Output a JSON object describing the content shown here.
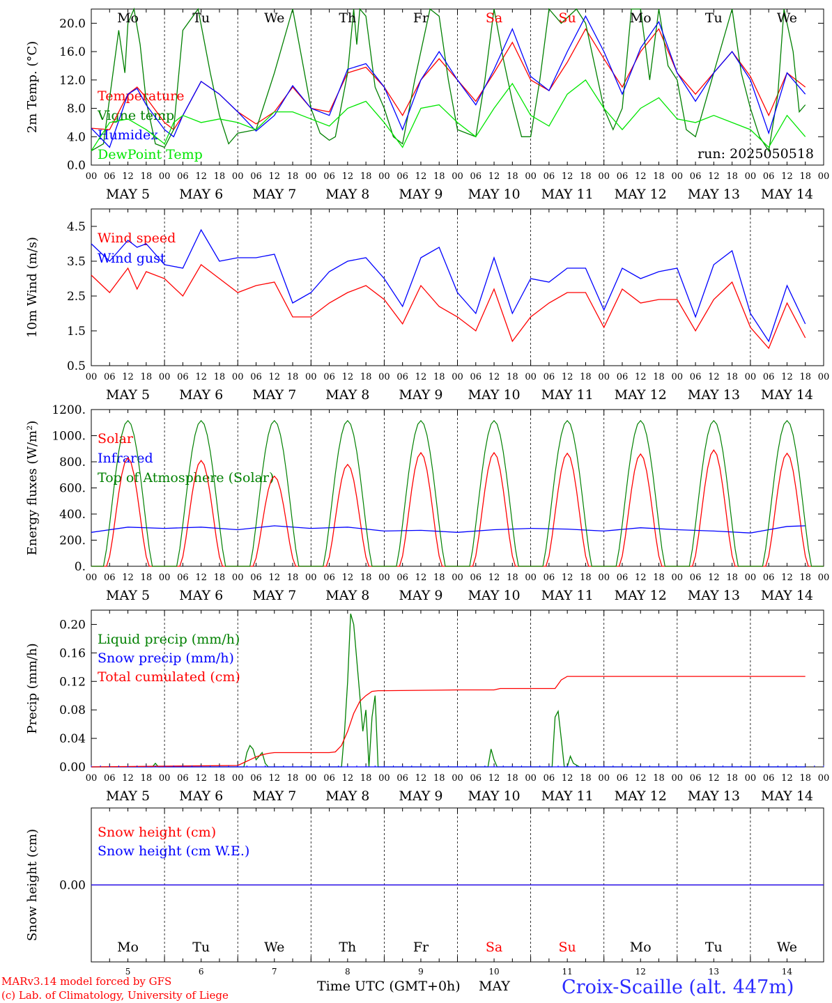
{
  "days": [
    {
      "abbr": "Mo",
      "num": "5",
      "label": "MAY  5",
      "color": "#000000"
    },
    {
      "abbr": "Tu",
      "num": "6",
      "label": "MAY  6",
      "color": "#000000"
    },
    {
      "abbr": "We",
      "num": "7",
      "label": "MAY  7",
      "color": "#000000"
    },
    {
      "abbr": "Th",
      "num": "8",
      "label": "MAY  8",
      "color": "#000000"
    },
    {
      "abbr": "Fr",
      "num": "9",
      "label": "MAY  9",
      "color": "#000000"
    },
    {
      "abbr": "Sa",
      "num": "10",
      "label": "MAY 10",
      "color": "#ff0000"
    },
    {
      "abbr": "Su",
      "num": "11",
      "label": "MAY 11",
      "color": "#ff0000"
    },
    {
      "abbr": "Mo",
      "num": "12",
      "label": "MAY 12",
      "color": "#000000"
    },
    {
      "abbr": "Tu",
      "num": "13",
      "label": "MAY 13",
      "color": "#000000"
    },
    {
      "abbr": "We",
      "num": "14",
      "label": "MAY 14",
      "color": "#000000"
    }
  ],
  "hour_ticks": [
    "00",
    "06",
    "12",
    "18"
  ],
  "colors": {
    "red": "#ff0000",
    "blue": "#0000ff",
    "green": "#008000",
    "lightgreen": "#00e600",
    "darkgreen": "#006400"
  },
  "chart_data": [
    {
      "type": "line",
      "ylabel": "2m Temp. (°C)",
      "ylim": [
        0,
        22
      ],
      "yticks": [
        "0.0",
        "4.0",
        "8.0",
        "12.0",
        "16.0",
        "20.0"
      ],
      "annotation": "run: 2025050518",
      "x_unit": "hours since May 5 00 UTC",
      "series": [
        {
          "name": "Temperature",
          "color": "#ff0000",
          "x": [
            0,
            6,
            12,
            15,
            18,
            24,
            27,
            30,
            36,
            42,
            48,
            54,
            60,
            66,
            72,
            78,
            84,
            90,
            96,
            102,
            108,
            114,
            120,
            126,
            132,
            138,
            144,
            150,
            156,
            162,
            168,
            174,
            180,
            186,
            192,
            198,
            204,
            210,
            216,
            222,
            228,
            234
          ],
          "y": [
            5.2,
            5.0,
            10.0,
            11.0,
            9.5,
            6.0,
            5.0,
            7.0,
            11.8,
            10.0,
            7.5,
            5.8,
            7.5,
            11.0,
            8.0,
            7.5,
            13.0,
            13.8,
            11.0,
            7.0,
            12.0,
            15.0,
            12.0,
            9.0,
            13.0,
            17.3,
            12.0,
            10.5,
            14.5,
            19.2,
            15.0,
            11.0,
            16.0,
            19.2,
            13.0,
            10.0,
            13.0,
            16.0,
            12.5,
            7.0,
            13.0,
            11.0
          ]
        },
        {
          "name": "Vigne temp",
          "color": "#008000",
          "x": [
            0,
            4,
            9,
            11,
            12,
            14,
            16,
            18,
            21,
            24,
            27,
            30,
            35,
            39,
            42,
            45,
            48,
            54,
            60,
            66,
            69,
            72,
            75,
            78,
            80,
            84,
            86,
            87,
            88,
            90,
            93,
            96,
            99,
            102,
            106,
            111,
            114,
            117,
            120,
            126,
            129,
            132,
            135,
            138,
            141,
            144,
            147,
            150,
            154,
            159,
            162,
            165,
            168,
            171,
            174,
            177,
            180,
            183,
            186,
            189,
            192,
            195,
            198,
            204,
            210,
            213,
            216,
            219,
            222,
            225,
            227,
            230,
            232,
            234
          ],
          "y": [
            2.0,
            3.0,
            19.0,
            13.0,
            20.0,
            22.0,
            17.0,
            9.0,
            3.0,
            2.5,
            5.0,
            19.0,
            22.0,
            13.0,
            7.0,
            3.0,
            4.5,
            5.0,
            13.0,
            22.0,
            15.0,
            8.0,
            4.5,
            3.5,
            4.0,
            13.0,
            22.0,
            17.0,
            22.0,
            21.0,
            11.0,
            8.0,
            4.0,
            3.0,
            12.0,
            22.0,
            21.0,
            12.0,
            5.0,
            4.0,
            12.0,
            22.0,
            15.0,
            9.0,
            4.0,
            4.0,
            12.0,
            22.0,
            20.0,
            22.0,
            20.0,
            14.0,
            8.0,
            5.0,
            8.0,
            22.0,
            22.0,
            12.0,
            22.0,
            14.0,
            12.0,
            5.0,
            4.0,
            13.0,
            22.0,
            13.0,
            8.0,
            4.0,
            2.0,
            10.0,
            22.0,
            16.0,
            7.5,
            8.5
          ]
        },
        {
          "name": "Humidex",
          "color": "#0000ff",
          "x": [
            0,
            6,
            12,
            15,
            18,
            24,
            27,
            30,
            36,
            42,
            48,
            54,
            60,
            66,
            72,
            78,
            84,
            90,
            96,
            102,
            108,
            114,
            120,
            126,
            132,
            138,
            144,
            150,
            156,
            162,
            168,
            174,
            180,
            186,
            192,
            198,
            204,
            210,
            216,
            222,
            228,
            234
          ],
          "y": [
            5.2,
            2.5,
            10.0,
            10.8,
            8.5,
            5.0,
            4.0,
            7.0,
            11.8,
            10.0,
            7.5,
            4.8,
            7.0,
            11.2,
            8.0,
            7.0,
            13.5,
            14.3,
            11.0,
            5.0,
            12.0,
            16.0,
            12.0,
            8.5,
            13.5,
            19.2,
            12.5,
            10.5,
            16.0,
            21.0,
            16.0,
            10.0,
            16.5,
            20.2,
            13.0,
            9.0,
            13.0,
            16.0,
            12.0,
            4.5,
            13.0,
            10.0
          ]
        },
        {
          "name": "DewPoint Temp",
          "color": "#00e600",
          "x": [
            0,
            6,
            12,
            18,
            24,
            27,
            30,
            36,
            42,
            48,
            54,
            60,
            66,
            72,
            78,
            84,
            90,
            96,
            102,
            108,
            114,
            120,
            126,
            132,
            138,
            144,
            150,
            156,
            162,
            168,
            174,
            180,
            186,
            192,
            198,
            204,
            210,
            216,
            222,
            228,
            234
          ],
          "y": [
            2.0,
            6.0,
            6.5,
            5.0,
            3.0,
            6.0,
            7.0,
            6.0,
            6.5,
            6.0,
            5.0,
            7.5,
            7.5,
            6.5,
            5.5,
            8.0,
            9.0,
            6.0,
            2.5,
            8.0,
            8.5,
            6.0,
            4.0,
            8.0,
            11.5,
            7.0,
            5.5,
            10.0,
            12.0,
            8.0,
            5.0,
            8.0,
            9.5,
            6.5,
            6.0,
            7.0,
            6.0,
            5.0,
            2.5,
            7.0,
            4.0
          ]
        }
      ]
    },
    {
      "type": "line",
      "ylabel": "10m Wind (m/s)",
      "ylim": [
        0.5,
        5.0
      ],
      "yticks": [
        "0.5",
        "1.5",
        "2.5",
        "3.5",
        "4.5"
      ],
      "x_unit": "hours since May 5 00 UTC",
      "series": [
        {
          "name": "Wind speed",
          "color": "#ff0000",
          "x": [
            0,
            6,
            12,
            15,
            18,
            24,
            30,
            36,
            42,
            48,
            54,
            60,
            66,
            72,
            78,
            84,
            90,
            96,
            102,
            108,
            114,
            120,
            126,
            132,
            138,
            144,
            150,
            156,
            162,
            168,
            174,
            180,
            186,
            192,
            198,
            204,
            210,
            216,
            222,
            228,
            234
          ],
          "y": [
            3.1,
            2.6,
            3.3,
            2.7,
            3.2,
            3.0,
            2.5,
            3.4,
            3.0,
            2.6,
            2.8,
            2.9,
            1.9,
            1.9,
            2.3,
            2.6,
            2.8,
            2.4,
            1.7,
            2.8,
            2.2,
            1.9,
            1.5,
            2.7,
            1.2,
            1.9,
            2.3,
            2.6,
            2.6,
            1.6,
            2.7,
            2.3,
            2.4,
            2.4,
            1.5,
            2.4,
            2.9,
            1.6,
            1.0,
            2.3,
            1.3
          ]
        },
        {
          "name": "Wind gust",
          "color": "#0000ff",
          "x": [
            0,
            6,
            12,
            15,
            18,
            24,
            30,
            36,
            42,
            48,
            54,
            60,
            66,
            72,
            78,
            84,
            90,
            96,
            102,
            108,
            114,
            120,
            126,
            132,
            138,
            144,
            150,
            156,
            162,
            168,
            174,
            180,
            186,
            192,
            198,
            204,
            210,
            216,
            222,
            228,
            234
          ],
          "y": [
            4.0,
            3.5,
            4.1,
            3.9,
            4.0,
            3.4,
            3.3,
            4.4,
            3.5,
            3.6,
            3.6,
            3.7,
            2.3,
            2.6,
            3.2,
            3.5,
            3.6,
            3.0,
            2.2,
            3.6,
            3.9,
            2.6,
            2.0,
            3.6,
            2.0,
            3.0,
            2.9,
            3.3,
            3.3,
            2.1,
            3.3,
            3.0,
            3.2,
            3.3,
            1.9,
            3.4,
            3.8,
            2.0,
            1.2,
            2.8,
            1.7
          ]
        }
      ]
    },
    {
      "type": "line",
      "ylabel": "Energy fluxes (W/m²)",
      "ylim": [
        0,
        1200
      ],
      "yticks": [
        "0.",
        "200.",
        "400.",
        "600.",
        "800.",
        "1000.",
        "1200."
      ],
      "x_unit": "hours since May 5 00 UTC",
      "series": [
        {
          "name": "Solar",
          "color": "#ff0000",
          "peaks": [
            830,
            810,
            690,
            780,
            870,
            870,
            865,
            860,
            890,
            865
          ]
        },
        {
          "name": "Infrared",
          "color": "#0000ff",
          "x": [
            0,
            12,
            24,
            36,
            48,
            60,
            72,
            84,
            96,
            108,
            120,
            132,
            144,
            156,
            168,
            180,
            192,
            204,
            216,
            228,
            234
          ],
          "y": [
            260,
            300,
            290,
            300,
            280,
            310,
            290,
            300,
            270,
            275,
            260,
            280,
            290,
            285,
            270,
            295,
            280,
            270,
            255,
            305,
            310
          ]
        },
        {
          "name": "Top of Atmosphere (Solar)",
          "color": "#008000",
          "peak": 1115
        }
      ]
    },
    {
      "type": "line",
      "ylabel": "Precip (mm/h)",
      "ylim": [
        0,
        0.22
      ],
      "yticks": [
        "0.00",
        "0.04",
        "0.08",
        "0.12",
        "0.16",
        "0.20"
      ],
      "x_unit": "hours since May 5 00 UTC",
      "series": [
        {
          "name": "Liquid precip (mm/h)",
          "color": "#008000",
          "x": [
            0,
            20,
            21,
            22,
            40,
            50,
            51,
            52,
            53,
            54,
            55,
            56,
            57,
            58,
            60,
            82,
            83,
            84,
            85,
            86,
            87,
            88,
            89,
            90,
            91,
            92,
            93,
            94,
            95,
            96,
            97,
            98,
            99,
            130,
            131,
            132,
            133,
            134,
            150,
            151,
            152,
            153,
            154,
            155,
            156,
            157,
            158,
            160,
            234
          ],
          "y": [
            0,
            0,
            0.005,
            0,
            0,
            0,
            0.02,
            0.03,
            0.025,
            0.01,
            0.015,
            0.02,
            0.005,
            0,
            0,
            0,
            0.05,
            0.12,
            0.215,
            0.2,
            0.15,
            0.1,
            0.05,
            0.08,
            0,
            0.07,
            0.1,
            0,
            0,
            0,
            0,
            0,
            0,
            0,
            0.025,
            0.01,
            0,
            0,
            0,
            0,
            0.07,
            0.078,
            0.04,
            0,
            0,
            0.015,
            0.005,
            0,
            0
          ]
        },
        {
          "name": "Snow precip (mm/h)",
          "color": "#0000ff",
          "x": [
            0,
            234
          ],
          "y": [
            0,
            0
          ]
        },
        {
          "name": "Total cumulated (cm)",
          "color": "#ff0000",
          "x": [
            0,
            48,
            50,
            52,
            54,
            56,
            58,
            60,
            78,
            80,
            82,
            84,
            86,
            88,
            90,
            92,
            94,
            96,
            120,
            132,
            134,
            144,
            152,
            154,
            156,
            234
          ],
          "y": [
            0.0,
            0.002,
            0.006,
            0.01,
            0.014,
            0.017,
            0.019,
            0.02,
            0.02,
            0.021,
            0.03,
            0.05,
            0.075,
            0.092,
            0.1,
            0.106,
            0.107,
            0.107,
            0.108,
            0.108,
            0.11,
            0.11,
            0.11,
            0.122,
            0.127,
            0.127
          ]
        }
      ]
    },
    {
      "type": "line",
      "ylabel": "Snow height (cm)",
      "yticks": [
        "0.00"
      ],
      "x_unit": "hours since May 5 00 UTC",
      "series": [
        {
          "name": "Snow height (cm)",
          "color": "#ff0000",
          "x": [
            0,
            240
          ],
          "y": [
            0,
            0
          ]
        },
        {
          "name": "Snow height (cm W.E.)",
          "color": "#0000ff",
          "x": [
            0,
            240
          ],
          "y": [
            0,
            0
          ]
        }
      ]
    }
  ],
  "footer": {
    "xlabel": "Time UTC (GMT+0h)",
    "month": "MAY",
    "credit1": "MARv3.14 model forced by GFS",
    "credit2": "(c) Lab. of Climatology, University of Liege",
    "station": "Croix-Scaille (alt. 447m)"
  }
}
